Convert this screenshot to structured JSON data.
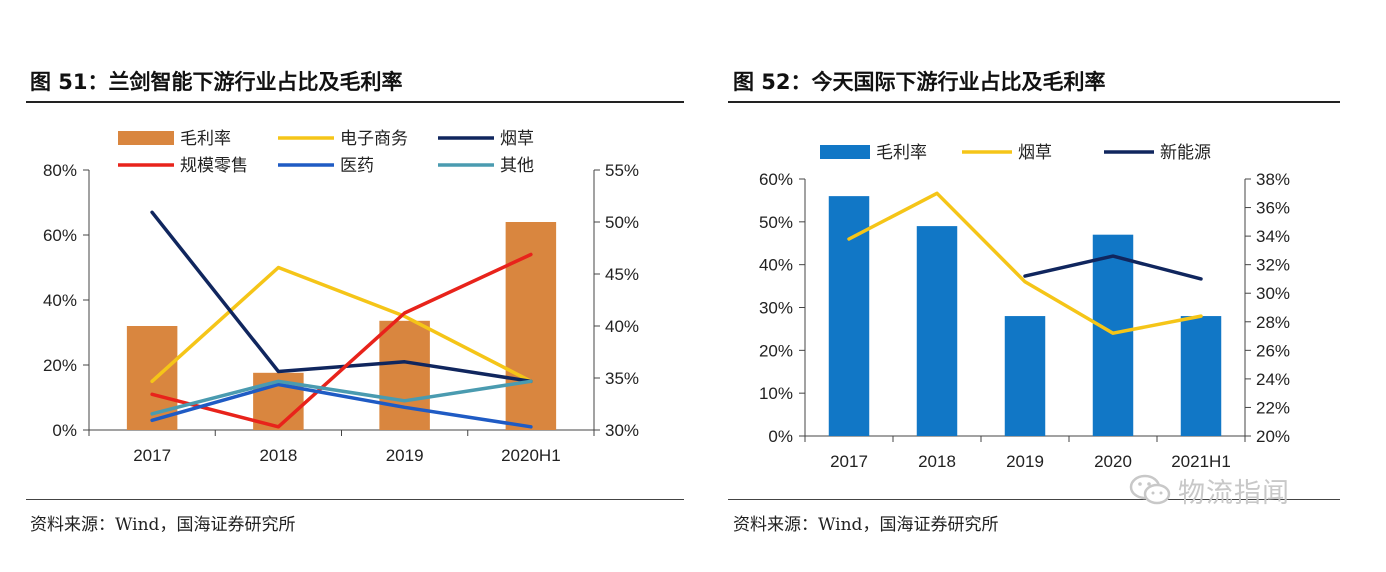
{
  "figure51": {
    "title": "图 51：兰剑智能下游行业占比及毛利率",
    "source": "资料来源：Wind，国海证券研究所"
  },
  "figure52": {
    "title": "图 52：今天国际下游行业占比及毛利率",
    "source": "资料来源：Wind，国海证券研究所"
  },
  "watermark": {
    "text": "物流指闻",
    "icon": "wechat-icon"
  },
  "chart_data": [
    {
      "id": "fig51",
      "type": "bar+line",
      "categories": [
        "2017",
        "2018",
        "2019",
        "2020H1"
      ],
      "bar_series": {
        "name": "毛利率",
        "axis": "right",
        "color": "#D9863F",
        "values": [
          40.0,
          35.5,
          40.5,
          50.0
        ]
      },
      "line_series": [
        {
          "name": "电子商务",
          "axis": "left",
          "color": "#F5C518",
          "values": [
            15,
            50,
            35,
            15
          ]
        },
        {
          "name": "烟草",
          "axis": "left",
          "color": "#10265E",
          "values": [
            67,
            18,
            21,
            15
          ]
        },
        {
          "name": "规模零售",
          "axis": "left",
          "color": "#E8231B",
          "values": [
            11,
            1,
            36,
            54
          ]
        },
        {
          "name": "医药",
          "axis": "left",
          "color": "#1F5BC4",
          "values": [
            3,
            14,
            7,
            1
          ]
        },
        {
          "name": "其他",
          "axis": "left",
          "color": "#4A9BB0",
          "values": [
            5,
            15,
            9,
            15
          ]
        }
      ],
      "legend_order": [
        "毛利率",
        "电子商务",
        "烟草",
        "规模零售",
        "医药",
        "其他"
      ],
      "y_left": {
        "min": 0,
        "max": 80,
        "step": 20,
        "ticks": [
          "0%",
          "20%",
          "40%",
          "60%",
          "80%"
        ]
      },
      "y_right": {
        "min": 30,
        "max": 55,
        "step": 5,
        "ticks": [
          "30%",
          "35%",
          "40%",
          "45%",
          "50%",
          "55%"
        ]
      },
      "legend_position": "top",
      "grid": false
    },
    {
      "id": "fig52",
      "type": "bar+line",
      "categories": [
        "2017",
        "2018",
        "2019",
        "2020",
        "2021H1"
      ],
      "bar_series": {
        "name": "毛利率",
        "axis": "left",
        "color": "#1177C6",
        "values": [
          56,
          49,
          28,
          47,
          28
        ]
      },
      "line_series": [
        {
          "name": "烟草",
          "axis": "right",
          "color": "#F5C518",
          "values": [
            33.8,
            37.0,
            30.8,
            27.2,
            28.4
          ]
        },
        {
          "name": "新能源",
          "axis": "right",
          "color": "#10265E",
          "values": [
            null,
            null,
            31.2,
            32.6,
            31.0
          ]
        }
      ],
      "legend_order": [
        "毛利率",
        "烟草",
        "新能源"
      ],
      "y_left": {
        "min": 0,
        "max": 60,
        "step": 10,
        "ticks": [
          "0%",
          "10%",
          "20%",
          "30%",
          "40%",
          "50%",
          "60%"
        ]
      },
      "y_right": {
        "min": 20,
        "max": 38,
        "step": 2,
        "ticks": [
          "20%",
          "22%",
          "24%",
          "26%",
          "28%",
          "30%",
          "32%",
          "34%",
          "36%",
          "38%"
        ]
      },
      "legend_position": "top",
      "grid": false
    }
  ]
}
